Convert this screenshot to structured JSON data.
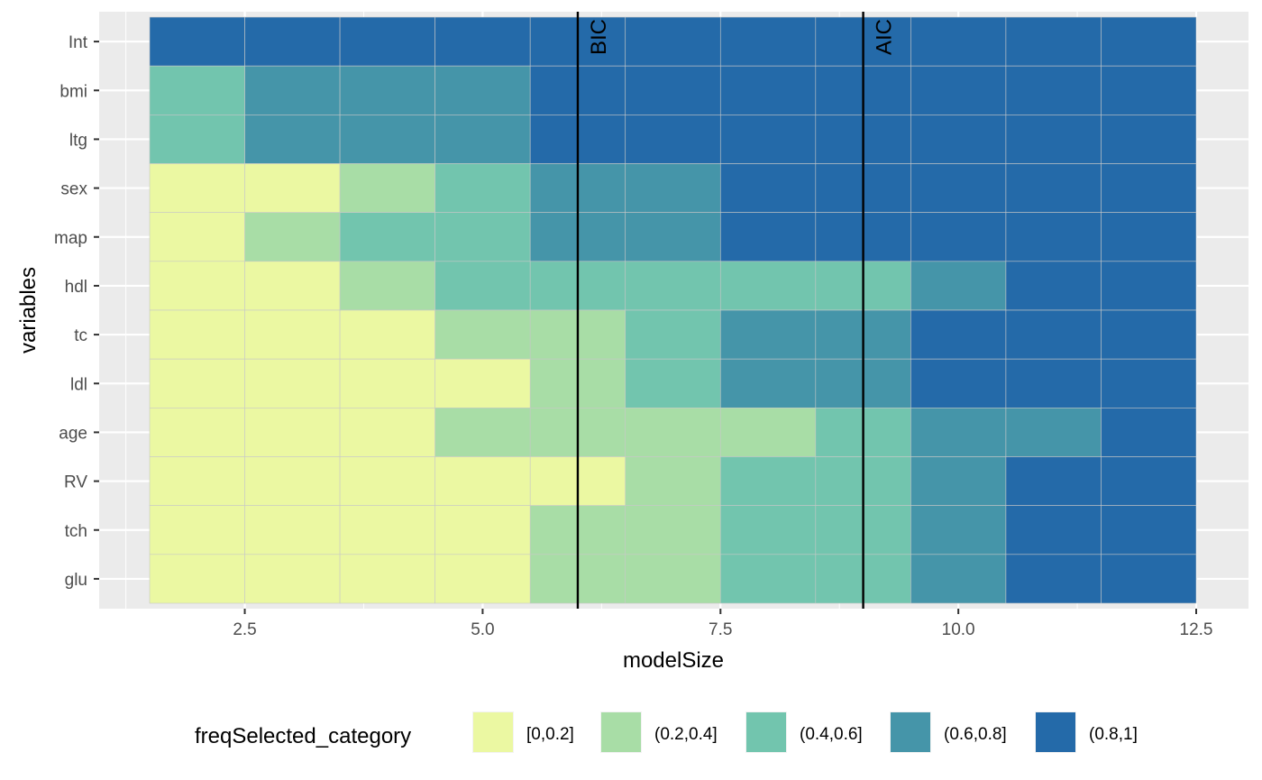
{
  "chart_data": {
    "type": "heatmap",
    "xlabel": "modelSize",
    "ylabel": "variables",
    "xlim": [
      1.2,
      13.0
    ],
    "x_ticks": [
      2.5,
      5.0,
      7.5,
      10.0,
      12.5
    ],
    "x_tick_labels": [
      "2.5",
      "5.0",
      "7.5",
      "10.0",
      "12.5"
    ],
    "variables": [
      "Int",
      "bmi",
      "ltg",
      "sex",
      "map",
      "hdl",
      "tc",
      "ldl",
      "age",
      "RV",
      "tch",
      "glu"
    ],
    "model_sizes": [
      2,
      3,
      4,
      5,
      6,
      7,
      8,
      9,
      10,
      11,
      12
    ],
    "categories": [
      "[0,0.2]",
      "(0.2,0.4]",
      "(0.4,0.6]",
      "(0.6,0.8]",
      "(0.8,1]"
    ],
    "category_colors": [
      "#ebf8a2",
      "#a8dda6",
      "#72c5ae",
      "#4595a9",
      "#246aa9"
    ],
    "category_index_matrix": [
      [
        4,
        4,
        4,
        4,
        4,
        4,
        4,
        4,
        4,
        4,
        4
      ],
      [
        2,
        3,
        3,
        3,
        4,
        4,
        4,
        4,
        4,
        4,
        4
      ],
      [
        2,
        3,
        3,
        3,
        4,
        4,
        4,
        4,
        4,
        4,
        4
      ],
      [
        0,
        0,
        1,
        2,
        3,
        3,
        4,
        4,
        4,
        4,
        4
      ],
      [
        0,
        1,
        2,
        2,
        3,
        3,
        4,
        4,
        4,
        4,
        4
      ],
      [
        0,
        0,
        1,
        2,
        2,
        2,
        2,
        2,
        3,
        4,
        4
      ],
      [
        0,
        0,
        0,
        1,
        1,
        2,
        3,
        3,
        4,
        4,
        4
      ],
      [
        0,
        0,
        0,
        0,
        1,
        2,
        3,
        3,
        4,
        4,
        4
      ],
      [
        0,
        0,
        0,
        1,
        1,
        1,
        1,
        2,
        3,
        3,
        4
      ],
      [
        0,
        0,
        0,
        0,
        0,
        1,
        2,
        2,
        3,
        4,
        4
      ],
      [
        0,
        0,
        0,
        0,
        1,
        1,
        2,
        2,
        3,
        4,
        4
      ],
      [
        0,
        0,
        0,
        0,
        1,
        1,
        2,
        2,
        3,
        4,
        4
      ]
    ],
    "vertical_lines": [
      {
        "label": "BIC",
        "x": 6.0
      },
      {
        "label": "AIC",
        "x": 9.0
      }
    ],
    "legend": {
      "title": "freqSelected_category",
      "position": "bottom"
    },
    "grid": true,
    "panel_background": "#ebebeb",
    "grid_color": "#ffffff"
  }
}
